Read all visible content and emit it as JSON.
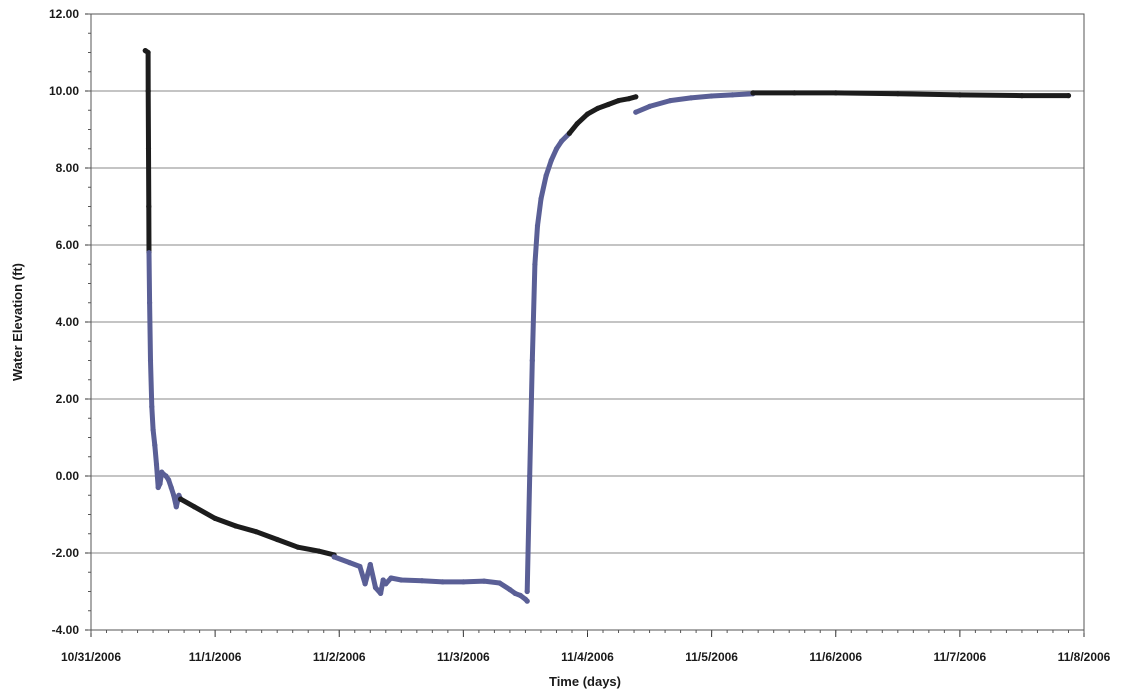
{
  "chart_data": {
    "type": "scatter",
    "title": "",
    "xlabel": "Time (days)",
    "ylabel": "Water Elevation (ft)",
    "xlim": [
      "10/31/2006",
      "11/8/2006"
    ],
    "ylim": [
      -4,
      12
    ],
    "x_tick_labels": [
      "10/31/2006",
      "11/1/2006",
      "11/2/2006",
      "11/3/2006",
      "11/4/2006",
      "11/5/2006",
      "11/6/2006",
      "11/7/2006",
      "11/8/2006"
    ],
    "y_tick_labels": [
      "12.00",
      "10.00",
      "8.00",
      "6.00",
      "4.00",
      "2.00",
      "0.00",
      "-2.00",
      "-4.00"
    ],
    "grid": {
      "horizontal": true,
      "vertical": false
    },
    "legend": "none",
    "series": [
      {
        "color": "#1c1c1c",
        "x": [
          "10/31/2006 10:30",
          "10/31/2006 11:02",
          "10/31/2006 11:04",
          "10/31/2006 11:07",
          "10/31/2006 11:10",
          "10/31/2006 11:13"
        ],
        "y": [
          11.05,
          11.0,
          10.0,
          8.5,
          7.0,
          5.8
        ]
      },
      {
        "color": "#5a5f96",
        "x": [
          "10/31/2006 11:13",
          "10/31/2006 11:20",
          "10/31/2006 11:30",
          "10/31/2006 11:45",
          "10/31/2006 12:00",
          "10/31/2006 12:20",
          "10/31/2006 12:40",
          "10/31/2006 13:00",
          "10/31/2006 13:20",
          "10/31/2006 13:40",
          "10/31/2006 14:00",
          "10/31/2006 14:30",
          "10/31/2006 15:00",
          "10/31/2006 15:30",
          "10/31/2006 16:00",
          "10/31/2006 16:30",
          "10/31/2006 17:00",
          "10/31/2006 17:20"
        ],
        "y": [
          5.8,
          4.5,
          3.0,
          1.8,
          1.2,
          0.8,
          0.3,
          -0.3,
          -0.2,
          0.1,
          0.05,
          0.0,
          -0.1,
          -0.3,
          -0.5,
          -0.8,
          -0.5,
          -0.6
        ]
      },
      {
        "color": "#1c1c1c",
        "x": [
          "10/31/2006 17:20",
          "10/31/2006 20:00",
          "11/1/2006 0:00",
          "11/1/2006 4:00",
          "11/1/2006 8:00",
          "11/1/2006 12:00",
          "11/1/2006 16:00",
          "11/1/2006 20:00",
          "11/1/2006 23:00"
        ],
        "y": [
          -0.6,
          -0.8,
          -1.1,
          -1.3,
          -1.45,
          -1.65,
          -1.85,
          -1.95,
          -2.05
        ]
      },
      {
        "color": "#5a5f96",
        "x": [
          "11/1/2006 23:00",
          "11/2/2006 2:00",
          "11/2/2006 4:00",
          "11/2/2006 5:00",
          "11/2/2006 6:00",
          "11/2/2006 7:00",
          "11/2/2006 8:00",
          "11/2/2006 8:30",
          "11/2/2006 9:00",
          "11/2/2006 10:00",
          "11/2/2006 12:00",
          "11/2/2006 16:00",
          "11/2/2006 20:00",
          "11/3/2006 0:00",
          "11/3/2006 4:00",
          "11/3/2006 7:00",
          "11/3/2006 9:00",
          "11/3/2006 10:00",
          "11/3/2006 11:00",
          "11/3/2006 12:00",
          "11/3/2006 12:20"
        ],
        "y": [
          -2.1,
          -2.25,
          -2.35,
          -2.8,
          -2.3,
          -2.9,
          -3.05,
          -2.7,
          -2.8,
          -2.65,
          -2.7,
          -2.72,
          -2.75,
          -2.75,
          -2.73,
          -2.78,
          -2.95,
          -3.05,
          -3.1,
          -3.2,
          -3.25
        ]
      },
      {
        "color": "#5a5f96",
        "x": [
          "11/3/2006 12:20",
          "11/3/2006 12:50",
          "11/3/2006 13:20",
          "11/3/2006 13:50",
          "11/3/2006 14:20",
          "11/3/2006 15:00",
          "11/3/2006 16:00",
          "11/3/2006 17:00",
          "11/3/2006 18:00",
          "11/3/2006 19:00",
          "11/3/2006 20:30"
        ],
        "y": [
          -3.0,
          0.0,
          3.0,
          5.5,
          6.5,
          7.2,
          7.8,
          8.2,
          8.5,
          8.7,
          8.9
        ]
      },
      {
        "color": "#1c1c1c",
        "x": [
          "11/3/2006 20:30",
          "11/3/2006 22:00",
          "11/4/2006 0:00",
          "11/4/2006 2:00",
          "11/4/2006 4:00",
          "11/4/2006 6:00",
          "11/4/2006 8:00",
          "11/4/2006 9:20"
        ],
        "y": [
          8.9,
          9.15,
          9.4,
          9.55,
          9.65,
          9.75,
          9.8,
          9.85
        ]
      },
      {
        "color": "#5a5f96",
        "x": [
          "11/4/2006 9:20",
          "11/4/2006 12:00",
          "11/4/2006 16:00",
          "11/4/2006 20:00",
          "11/5/2006 0:00",
          "11/5/2006 4:00",
          "11/5/2006 8:00"
        ],
        "y": [
          9.45,
          9.6,
          9.75,
          9.82,
          9.87,
          9.9,
          9.93
        ]
      },
      {
        "color": "#1c1c1c",
        "x": [
          "11/5/2006 8:00",
          "11/5/2006 16:00",
          "11/6/2006 0:00",
          "11/6/2006 12:00",
          "11/7/2006 0:00",
          "11/7/2006 12:00",
          "11/7/2006 21:00"
        ],
        "y": [
          9.95,
          9.95,
          9.95,
          9.93,
          9.9,
          9.88,
          9.88
        ]
      }
    ]
  }
}
